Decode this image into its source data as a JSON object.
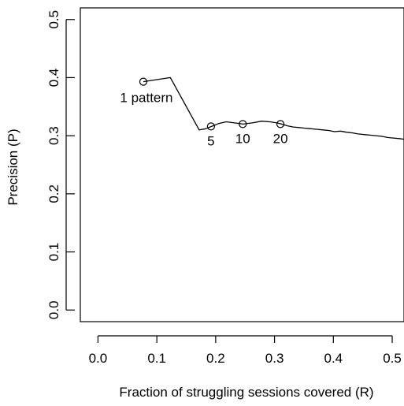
{
  "chart_data": {
    "type": "line",
    "title": "",
    "xlabel": "Fraction of struggling sessions covered (R)",
    "ylabel": "Precision (P)",
    "xlim": [
      -0.03,
      0.52
    ],
    "ylim": [
      -0.02,
      0.52
    ],
    "x_ticks": [
      0.0,
      0.1,
      0.2,
      0.3,
      0.4,
      0.5
    ],
    "x_tick_labels": [
      "0.0",
      "0.1",
      "0.2",
      "0.3",
      "0.4",
      "0.5"
    ],
    "y_ticks": [
      0.0,
      0.1,
      0.2,
      0.3,
      0.4,
      0.5
    ],
    "y_tick_labels": [
      "0.0",
      "0.1",
      "0.2",
      "0.3",
      "0.4",
      "0.5"
    ],
    "grid": false,
    "line_color": "#000000",
    "series": [
      {
        "x": [
          0.077,
          0.123,
          0.172,
          0.183,
          0.193,
          0.205,
          0.218,
          0.232,
          0.247,
          0.262,
          0.278,
          0.292,
          0.304,
          0.312,
          0.322,
          0.332,
          0.342,
          0.352,
          0.362,
          0.372,
          0.382,
          0.392,
          0.402,
          0.412,
          0.422,
          0.432,
          0.442,
          0.452,
          0.462,
          0.472,
          0.482,
          0.492,
          0.502,
          0.512,
          0.52
        ],
        "y": [
          0.393,
          0.4,
          0.31,
          0.312,
          0.316,
          0.321,
          0.324,
          0.322,
          0.32,
          0.322,
          0.325,
          0.324,
          0.322,
          0.32,
          0.317,
          0.315,
          0.314,
          0.313,
          0.312,
          0.311,
          0.31,
          0.309,
          0.307,
          0.308,
          0.306,
          0.305,
          0.303,
          0.302,
          0.301,
          0.3,
          0.299,
          0.297,
          0.296,
          0.295,
          0.294
        ]
      }
    ],
    "markers": [
      {
        "x": 0.077,
        "y": 0.393,
        "label": "1 pattern",
        "label_pos": "below-left"
      },
      {
        "x": 0.192,
        "y": 0.316,
        "label": "5",
        "label_pos": "below"
      },
      {
        "x": 0.246,
        "y": 0.32,
        "label": "10",
        "label_pos": "below"
      },
      {
        "x": 0.31,
        "y": 0.32,
        "label": "20",
        "label_pos": "below"
      }
    ]
  }
}
